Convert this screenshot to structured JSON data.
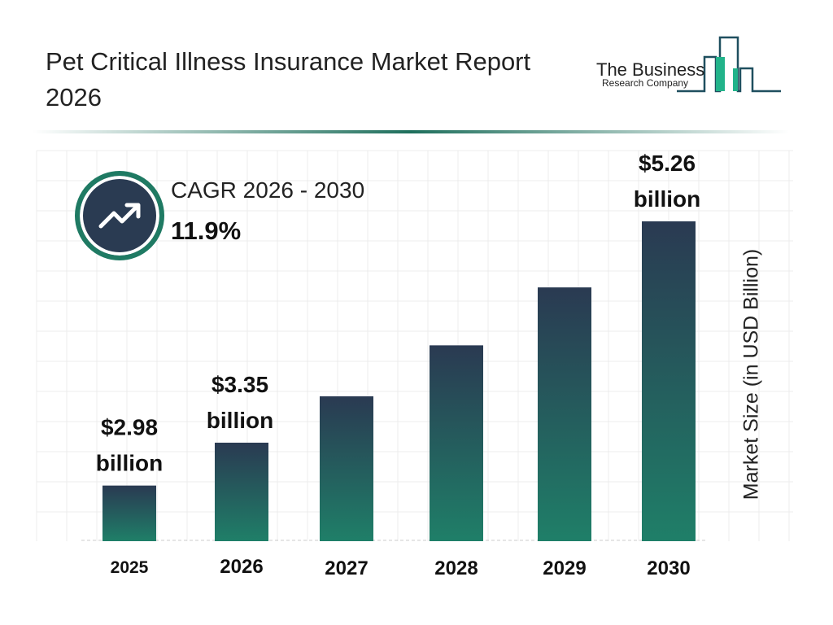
{
  "header": {
    "title": "Pet Critical Illness Insurance Market Report 2026"
  },
  "logo": {
    "line1": "The Business",
    "line2": "Research Company"
  },
  "cagr": {
    "label": "CAGR 2026 - 2030",
    "value": "11.9%",
    "icon": "trending-up-icon"
  },
  "colors": {
    "bar_top": "#2a3a52",
    "bar_bottom": "#1f7f68",
    "accent": "#1f7a63"
  },
  "chart_data": {
    "type": "bar",
    "title": "Pet Critical Illness Insurance Market Report 2026",
    "categories": [
      "2025",
      "2026",
      "2027",
      "2028",
      "2029",
      "2030"
    ],
    "values": [
      2.98,
      3.35,
      3.75,
      4.19,
      4.69,
      5.26
    ],
    "data_labels": [
      "$2.98 billion",
      "$3.35 billion",
      "",
      "",
      "",
      "$5.26 billion"
    ],
    "ylabel": "Market Size (in USD Billion)",
    "xlabel": "",
    "grid": true
  }
}
